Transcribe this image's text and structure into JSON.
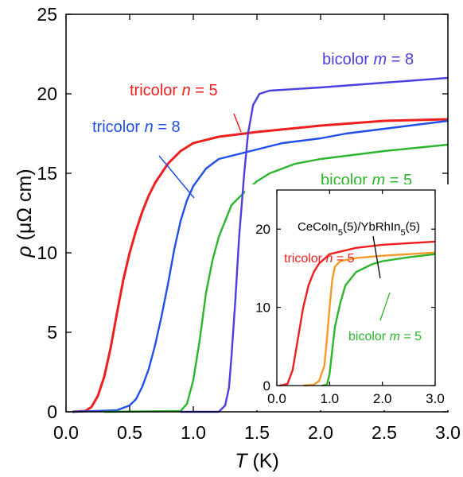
{
  "chart_data": [
    {
      "type": "line",
      "xlabel": "T (K)",
      "xlabel_italic": "T",
      "xlabel_unit": " (K)",
      "ylabel": "ρ (μΩ cm)",
      "ylabel_italic": "ρ",
      "ylabel_unit": "(μΩ cm)",
      "xlim": [
        0.0,
        3.0
      ],
      "ylim": [
        0,
        25
      ],
      "x_ticks": [
        "0.0",
        "0.5",
        "1.0",
        "1.5",
        "2.0",
        "2.5",
        "3.0"
      ],
      "y_ticks": [
        "0",
        "5",
        "10",
        "15",
        "20",
        "25"
      ],
      "grid": false,
      "legend": "inline labels",
      "series": [
        {
          "name": "tricolor n = 5",
          "label": {
            "text": "tricolor ",
            "italic": "n",
            "rest": " = 5"
          },
          "color": "#ee1f1f",
          "points": [
            [
              0.05,
              0.0
            ],
            [
              0.15,
              0.05
            ],
            [
              0.2,
              0.3
            ],
            [
              0.25,
              1.0
            ],
            [
              0.3,
              2.2
            ],
            [
              0.35,
              4.0
            ],
            [
              0.4,
              6.2
            ],
            [
              0.45,
              8.3
            ],
            [
              0.5,
              10.0
            ],
            [
              0.55,
              11.4
            ],
            [
              0.6,
              12.6
            ],
            [
              0.65,
              13.6
            ],
            [
              0.7,
              14.4
            ],
            [
              0.75,
              15.0
            ],
            [
              0.8,
              15.6
            ],
            [
              0.85,
              16.0
            ],
            [
              0.9,
              16.4
            ],
            [
              1.0,
              16.9
            ],
            [
              1.2,
              17.3
            ],
            [
              1.5,
              17.6
            ],
            [
              2.0,
              18.0
            ],
            [
              2.5,
              18.3
            ],
            [
              3.0,
              18.4
            ]
          ]
        },
        {
          "name": "tricolor n = 8",
          "label": {
            "text": "tricolor ",
            "italic": "n",
            "rest": " = 8"
          },
          "color": "#1f4fe8",
          "points": [
            [
              0.05,
              0.0
            ],
            [
              0.4,
              0.1
            ],
            [
              0.5,
              0.4
            ],
            [
              0.55,
              0.8
            ],
            [
              0.6,
              1.6
            ],
            [
              0.65,
              2.7
            ],
            [
              0.7,
              4.2
            ],
            [
              0.75,
              6.0
            ],
            [
              0.8,
              8.0
            ],
            [
              0.85,
              10.2
            ],
            [
              0.9,
              12.0
            ],
            [
              0.95,
              13.3
            ],
            [
              1.0,
              14.2
            ],
            [
              1.1,
              15.3
            ],
            [
              1.2,
              15.9
            ],
            [
              1.35,
              16.2
            ],
            [
              1.5,
              16.5
            ],
            [
              1.7,
              16.9
            ],
            [
              2.0,
              17.2
            ],
            [
              2.2,
              17.5
            ],
            [
              2.5,
              17.8
            ],
            [
              3.0,
              18.3
            ]
          ]
        },
        {
          "name": "bicolor m = 5",
          "label": {
            "text": "bicolor ",
            "italic": "m",
            "rest": " = 5"
          },
          "color": "#2db52d",
          "points": [
            [
              0.3,
              0.0
            ],
            [
              0.9,
              0.05
            ],
            [
              0.95,
              0.5
            ],
            [
              1.0,
              2.0
            ],
            [
              1.05,
              4.5
            ],
            [
              1.1,
              7.5
            ],
            [
              1.15,
              9.5
            ],
            [
              1.2,
              11.0
            ],
            [
              1.25,
              12.0
            ],
            [
              1.3,
              13.0
            ],
            [
              1.4,
              13.8
            ],
            [
              1.5,
              14.5
            ],
            [
              1.6,
              15.0
            ],
            [
              1.8,
              15.6
            ],
            [
              2.0,
              15.9
            ],
            [
              2.5,
              16.4
            ],
            [
              3.0,
              16.8
            ]
          ]
        },
        {
          "name": "bicolor m = 8",
          "label": {
            "text": "bicolor ",
            "italic": "m",
            "rest": " = 8"
          },
          "color": "#4a3fe0",
          "points": [
            [
              0.9,
              0.0
            ],
            [
              1.2,
              0.0
            ],
            [
              1.25,
              0.4
            ],
            [
              1.28,
              1.5
            ],
            [
              1.3,
              3.5
            ],
            [
              1.33,
              7.0
            ],
            [
              1.36,
              11.0
            ],
            [
              1.4,
              15.0
            ],
            [
              1.43,
              17.5
            ],
            [
              1.47,
              19.3
            ],
            [
              1.52,
              20.0
            ],
            [
              1.6,
              20.2
            ],
            [
              2.0,
              20.4
            ],
            [
              2.5,
              20.7
            ],
            [
              3.0,
              21.0
            ]
          ]
        }
      ]
    },
    {
      "type": "line",
      "role": "inset",
      "xlim": [
        0.0,
        3.0
      ],
      "ylim": [
        0,
        25
      ],
      "x_ticks": [
        "0.0",
        "1.0",
        "2.0",
        "3.0"
      ],
      "y_ticks": [
        "0",
        "10",
        "20"
      ],
      "grid": false,
      "series": [
        {
          "name": "tricolor n = 5",
          "label": {
            "text": "tricolor ",
            "italic": "n",
            "rest": " = 5"
          },
          "color": "#ee1f1f",
          "points": [
            [
              0.05,
              0.0
            ],
            [
              0.2,
              0.2
            ],
            [
              0.3,
              2.0
            ],
            [
              0.4,
              6.0
            ],
            [
              0.5,
              10.0
            ],
            [
              0.6,
              12.8
            ],
            [
              0.7,
              14.5
            ],
            [
              0.8,
              15.6
            ],
            [
              1.0,
              16.8
            ],
            [
              1.5,
              17.6
            ],
            [
              2.0,
              18.0
            ],
            [
              3.0,
              18.4
            ]
          ]
        },
        {
          "name": "CeCoIn5(5)/YbRhIn5(5)",
          "label": {
            "parts": [
              [
                "CeCoIn",
                ""
              ],
              [
                "5",
                "sub"
              ],
              [
                "(5)/YbRhIn",
                ""
              ],
              [
                "5",
                "sub"
              ],
              [
                "(5)",
                ""
              ]
            ]
          },
          "color": "#f59a2a",
          "points": [
            [
              0.5,
              0.0
            ],
            [
              0.7,
              0.1
            ],
            [
              0.8,
              0.6
            ],
            [
              0.9,
              2.5
            ],
            [
              0.95,
              6.0
            ],
            [
              1.0,
              10.0
            ],
            [
              1.05,
              13.5
            ],
            [
              1.1,
              15.2
            ],
            [
              1.2,
              15.9
            ],
            [
              1.5,
              16.3
            ],
            [
              2.0,
              16.6
            ],
            [
              3.0,
              17.0
            ]
          ]
        },
        {
          "name": "bicolor m = 5",
          "label": {
            "text": "bicolor ",
            "italic": "m",
            "rest": " = 5"
          },
          "color": "#2db52d",
          "points": [
            [
              0.85,
              0.0
            ],
            [
              0.95,
              0.1
            ],
            [
              1.0,
              1.5
            ],
            [
              1.05,
              4.5
            ],
            [
              1.1,
              7.5
            ],
            [
              1.2,
              10.5
            ],
            [
              1.3,
              12.8
            ],
            [
              1.5,
              14.5
            ],
            [
              1.8,
              15.5
            ],
            [
              2.0,
              15.9
            ],
            [
              2.5,
              16.4
            ],
            [
              3.0,
              16.8
            ]
          ]
        }
      ]
    }
  ]
}
